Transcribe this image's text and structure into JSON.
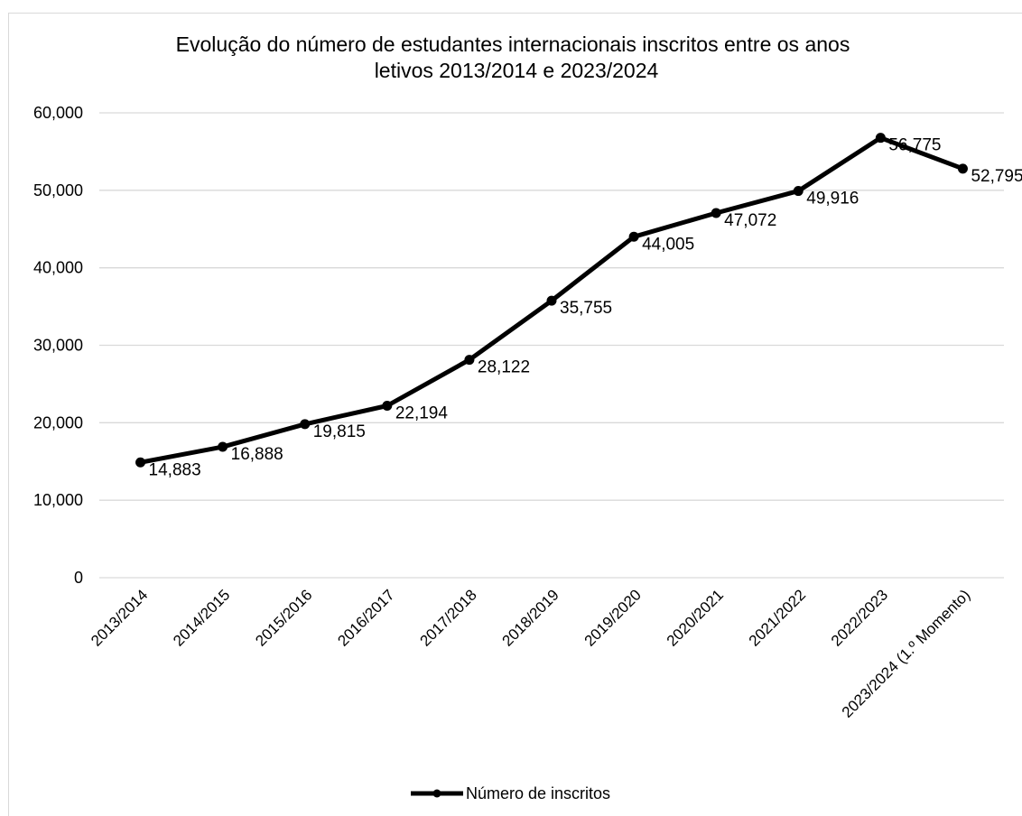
{
  "chart_data": {
    "type": "line",
    "title_lines": [
      "Evolução do número de estudantes internacionais inscritos entre os anos",
      "letivos 2013/2014 e 2023/2024"
    ],
    "categories": [
      "2013/2014",
      "2014/2015",
      "2015/2016",
      "2016/2017",
      "2017/2018",
      "2018/2019",
      "2019/2020",
      "2020/2021",
      "2021/2022",
      "2022/2023",
      "2023/2024 (1.º Momento)"
    ],
    "series": [
      {
        "name": "Número de inscritos",
        "values": [
          14883,
          16888,
          19815,
          22194,
          28122,
          35755,
          44005,
          47072,
          49916,
          56775,
          52795
        ],
        "labels": [
          "14,883",
          "16,888",
          "19,815",
          "22,194",
          "28,122",
          "35,755",
          "44,005",
          "47,072",
          "49,916",
          "56,775",
          "52,795"
        ]
      }
    ],
    "ylim": [
      0,
      60000
    ],
    "yticks": [
      0,
      10000,
      20000,
      30000,
      40000,
      50000,
      60000
    ],
    "ytick_labels": [
      "0",
      "10,000",
      "20,000",
      "30,000",
      "40,000",
      "50,000",
      "60,000"
    ],
    "grid": true,
    "legend": "bottom",
    "line_color": "#000000",
    "grid_color": "#d9d9d9"
  }
}
